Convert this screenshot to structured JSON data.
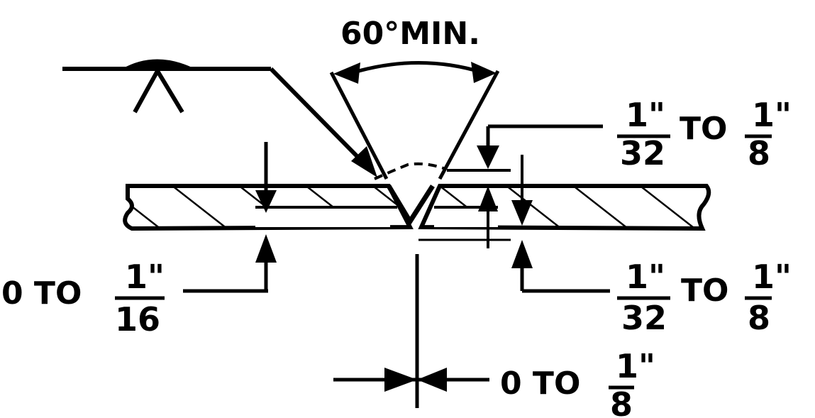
{
  "angle_label": "60°MIN.",
  "root_face_top": {
    "num": "1\"",
    "den": "32",
    "sep": "TO",
    "num2": "1\"",
    "den2": "8"
  },
  "root_face_bottom": {
    "num": "1\"",
    "den": "32",
    "sep": "TO",
    "num2": "1\"",
    "den2": "8"
  },
  "left_dim": {
    "prefix": "0 TO",
    "num": "1\"",
    "den": "16"
  },
  "gap_dim": {
    "prefix": "0 TO",
    "num": "1\"",
    "den": "8"
  },
  "colors": {
    "ink": "#000000",
    "paper": "#ffffff"
  }
}
